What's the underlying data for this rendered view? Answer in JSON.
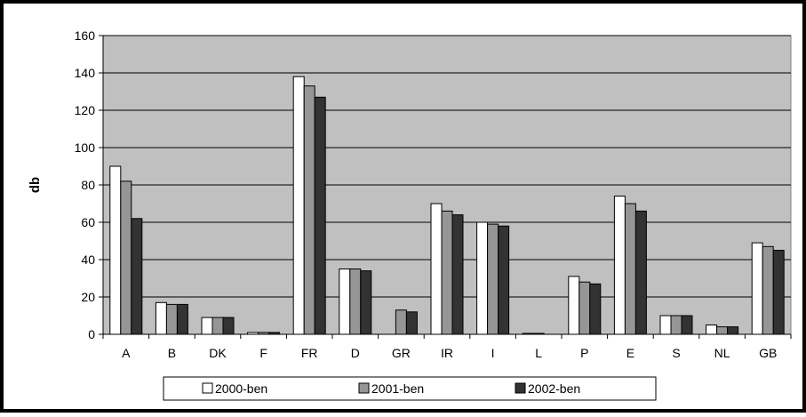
{
  "chart_data": {
    "type": "bar",
    "title": "",
    "xlabel": "",
    "ylabel": "db",
    "ylim": [
      0,
      160
    ],
    "yticks": [
      0,
      20,
      40,
      60,
      80,
      100,
      120,
      140,
      160
    ],
    "grid": true,
    "legend_position": "bottom",
    "plot_background": "#c0c0c0",
    "categories": [
      "A",
      "B",
      "DK",
      "F",
      "FR",
      "D",
      "GR",
      "IR",
      "I",
      "L",
      "P",
      "E",
      "S",
      "NL",
      "GB"
    ],
    "series": [
      {
        "name": "2000-ben",
        "color": "#ffffff",
        "values": [
          90,
          17,
          9,
          1,
          138,
          35,
          0,
          70,
          60,
          0.5,
          31,
          74,
          10,
          5,
          49
        ]
      },
      {
        "name": "2001-ben",
        "color": "#969696",
        "values": [
          82,
          16,
          9,
          1,
          133,
          35,
          13,
          66,
          59,
          0.5,
          28,
          70,
          10,
          4,
          47
        ]
      },
      {
        "name": "2002-ben",
        "color": "#333333",
        "values": [
          62,
          16,
          9,
          1,
          127,
          34,
          12,
          64,
          58,
          0,
          27,
          66,
          10,
          4,
          45
        ]
      }
    ]
  }
}
